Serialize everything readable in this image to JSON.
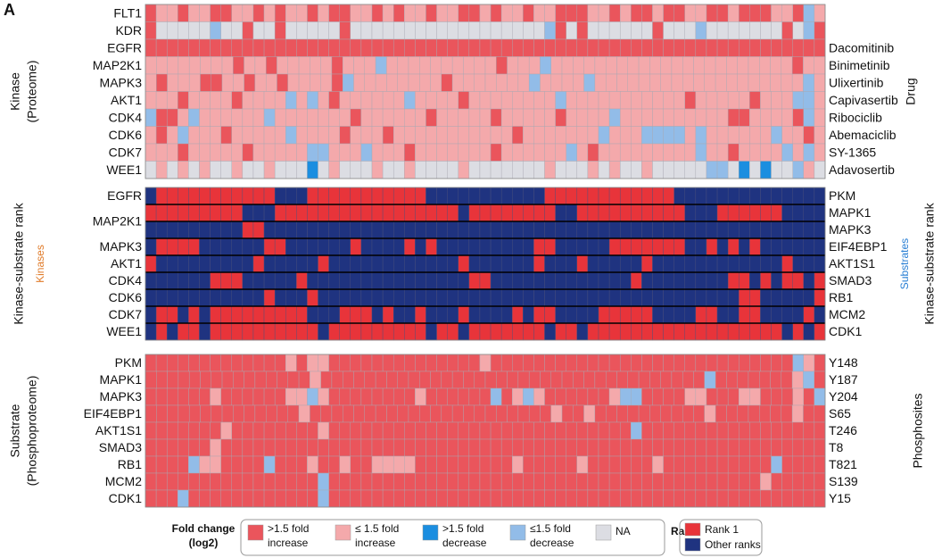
{
  "label": "A",
  "colors": {
    "R": "#ea555c",
    "P": "#f4a9ab",
    "B": "#1b8ee0",
    "L": "#92bce8",
    "N": "#dcdde3",
    "1": "#e8343a",
    "0": "#1f3380"
  },
  "panels": [
    {
      "side_left": [
        "Kinase",
        "(Proteome)"
      ],
      "side_right": [
        "Drug"
      ],
      "rows": [
        {
          "left": "FLT1",
          "cells": "RPPRPPRRPPRPRPPRPRRPPRPRPPRPPRRPRPPRPPRRRPPRPRRPRRPPRRPRRRPPRLP"
        },
        {
          "left": "KDR",
          "cells": "RNNNNNLNNRNNRNNNNNRNNNNNNNNNNNNNNNNNNLRNRNNNNNNRNNNLNNNNNNNRNLR"
        },
        {
          "left": "EGFR",
          "right": "Dacomitinib",
          "cells": "RRRRRRRRRRRRRRRRRRRRRRRRRRRRRRRRRRRRRRRRRRRRRRRRRRRRRRRRRRRRRRR"
        },
        {
          "left": "MAP2K1",
          "right": "Binimetinib",
          "cells": "PPPPPPPPRPPRPPPPPRPPPLPPPPPPPPPPRPPPLPPPPPPPPPPPPPPPPPPPPPPRPP"
        },
        {
          "left": "MAPK3",
          "right": "Ulixertinib",
          "cells": "PRPPPRRPPRPPRPPPPRLPPPPPPPPRPPPPPPPLPPPPLPPPPPPPPPPPPPPPPPPPLP"
        },
        {
          "left": "AKT1",
          "right": "Capivasertib",
          "cells": "PPPRPPPPRPPPPLPLPRPPPPPPLPPPPRPPPPPPPPLPPPPPPPPPPPRPPPPPRPPPLLP"
        },
        {
          "left": "CDK4",
          "right": "Ribociclib",
          "cells": "LRRPLPPPPPPLPPPPPPPRPPPPPPRPPPPPRPPPPPRPPPPLPPPPPPPPPPRRPPPPRLP"
        },
        {
          "left": "CDK6",
          "right": "Abemaciclib",
          "cells": "PRPLPPPRPPPPPLPPPPRPPPRPPPPPPPPPPPRPPPPPPPLPPPLLLLPLPPPPPPLPPRP"
        },
        {
          "left": "CDK7",
          "right": "SY-1365",
          "cells": "PPPRPPPPPRPPPPPLLPPPLPPPRPPPPPPPRPPPPPPLPRPPPPPPPPPLPPRPPPPLPLP"
        },
        {
          "left": "WEE1",
          "right": "Adavosertib",
          "cells": "NPNPNPNNPNNPNNNBNPNNNPNNPNNNNPNNNNNNNPNNNPNPNNPNNNNNLLNBNBNNLPN"
        }
      ]
    },
    {
      "side_left": [
        "Kinase-substrate rank",
        "Kinases"
      ],
      "side_right": [
        "Substrates",
        "Kinase-substrate rank"
      ],
      "rows": [
        {
          "left": "EGFR",
          "right": "PKM",
          "cells": "011111111111000111111111110000000000011111111111100000000000000"
        },
        {
          "left": "MAP2K1",
          "right": "MAPK1",
          "cells": "111111111000111111111111111110111111110011111111110001111110000"
        },
        {
          "right": "MAPK3",
          "cells": "000000000110000000000000000000000000000000000000000000000000000"
        },
        {
          "left": "MAPK3",
          "right": "EIF4EBP1",
          "cells": "011110000001100000010000101000000000110000011111110010101000000"
        },
        {
          "left": "AKT1",
          "right": "AKT1S1",
          "cells": "100000000010000010000000000001000000100010000010000000000001000"
        },
        {
          "left": "CDK4",
          "right": "SMAD3",
          "cells": "000000111000001000000000000000110000000000000100000000110101101"
        },
        {
          "left": "CDK6",
          "right": "RB1",
          "cells": "000000000001000100000000000000000000000000000000000000011000001"
        },
        {
          "left": "CDK7",
          "right": "MCM2",
          "cells": "011010111111111000111010010001000010110000111110000110011000010"
        },
        {
          "left": "WEE1",
          "right": "CDK1",
          "cells": "010110111111111101111111110110111111101101111111111111111110101"
        }
      ]
    },
    {
      "side_left": [
        "Substrate",
        "(Phosphoproteome)"
      ],
      "side_right": [
        "Phosphosites"
      ],
      "rows": [
        {
          "left": "PKM",
          "right": "Y148",
          "cells": "RRRRRRRRRRRRRPRPPRRRRRRRRRRRRRRPRRRRRRRRRRRRRRRRRRRRRRRRRRRRLPR"
        },
        {
          "left": "MAPK1",
          "right": "Y187",
          "cells": "RRRRRRRRRRRRRRRPRRRRRRRRRRRRRRRRRRRRRRRRRRRRRRRRRRRLRRRRRRRPLR"
        },
        {
          "left": "MAPK3",
          "right": "Y204",
          "cells": "RRRRRRPRRRRRRPPLPRRRRRRRRPRRRRRRLRPLPRRRRRRPLLRRRRPPRRRPPRRRPRL"
        },
        {
          "left": "EIF4EBP1",
          "right": "S65",
          "cells": "RRRRRRRRRRRRRRPRRRRRRRRRRRRRRRRRRRRRRPRRPRRRRRRRRRRPRRRRRRRPRR"
        },
        {
          "left": "AKT1S1",
          "right": "T246",
          "cells": "RRRRRRRPRRRRRRRRPRRRRRRRRRRRRRRRRRRRRRRRRRRRRLRRRRRRRRRRRRRRRRR"
        },
        {
          "left": "SMAD3",
          "right": "T8",
          "cells": "RRRRRRPRRRRRRRRRRRRRRRRRRRRRRRRRRRRRRRRRRRRRRRRRRRRRRRRRRRRRRRR"
        },
        {
          "left": "RB1",
          "right": "T821",
          "cells": "RRRRLPPRRRRLRRRPRRPRRPPPPRRRRRRRRRPRRRRRPRRRRRRPRRRRRRRRRRLRRRR"
        },
        {
          "left": "MCM2",
          "right": "S139",
          "cells": "RRRRRRRRRRRRRRRRLRRRRRRRRRRRRRRRRRRRRRRRRRRRRRRRRRRRRRRRRPRRRRR"
        },
        {
          "left": "CDK1",
          "right": "Y15",
          "cells": "RRRLRRRRRRRRRRRRLRRRRRRRRRRRRRRRRRRRRRRRRRRRRRRRRRRRRRRRRRRRRRR"
        }
      ]
    }
  ],
  "legend": {
    "title": [
      "Fold change",
      "(log2)"
    ],
    "items": [
      {
        "code": "R",
        "label": [
          ">1.5 fold",
          "increase"
        ]
      },
      {
        "code": "P",
        "label": [
          "≤ 1.5 fold",
          "increase"
        ]
      },
      {
        "code": "B",
        "label": [
          ">1.5 fold",
          "decrease"
        ]
      },
      {
        "code": "L",
        "label": [
          "≤1.5 fold",
          "decrease"
        ]
      },
      {
        "code": "N",
        "label": [
          "NA"
        ]
      }
    ],
    "rank_title": "Rank",
    "rank_items": [
      {
        "code": "1",
        "label": "Rank 1"
      },
      {
        "code": "0",
        "label": "Other ranks"
      }
    ]
  }
}
